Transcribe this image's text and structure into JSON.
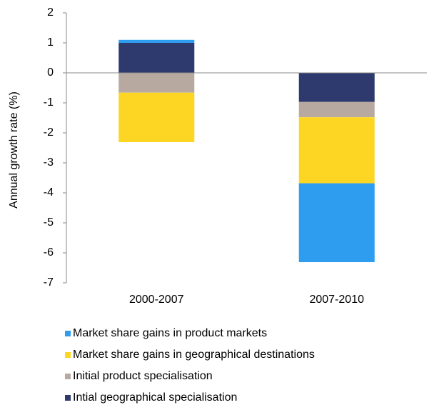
{
  "chart_data": {
    "type": "stacked-bar",
    "y_label": "Annual growth rate (%)",
    "categories": [
      "2000-2007",
      "2007-2010"
    ],
    "series": [
      {
        "name": "Intial geographical specialisation",
        "color": "#2e3a6e",
        "values": [
          1.0,
          -0.97
        ]
      },
      {
        "name": "Initial product specialisation",
        "color": "#b8a9a0",
        "values": [
          -0.66,
          -0.51
        ]
      },
      {
        "name": "Market share gains in geographical destinations",
        "color": "#fdd623",
        "values": [
          -1.65,
          -2.2
        ]
      },
      {
        "name": "Market share gains in product markets",
        "color": "#2e9df0",
        "values": [
          0.1,
          -2.63
        ]
      }
    ],
    "ylim": [
      -7,
      2
    ],
    "yticks": [
      2,
      1,
      0,
      -1,
      -2,
      -3,
      -4,
      -5,
      -6,
      -7
    ]
  }
}
